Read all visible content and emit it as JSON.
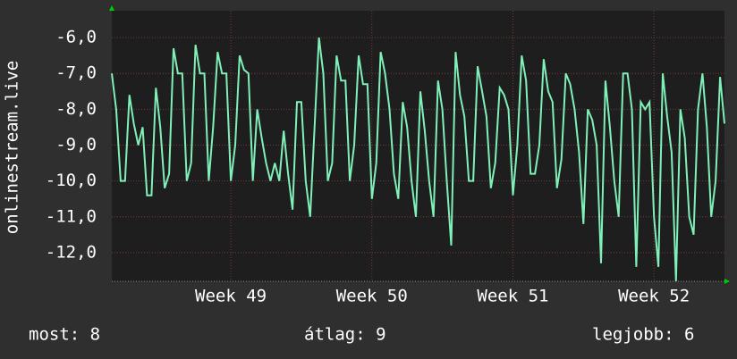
{
  "chart_data": {
    "type": "line",
    "ylabel": "onlinestream.live",
    "values": [
      -7.0,
      -8.0,
      -10.0,
      -10.0,
      -7.6,
      -8.4,
      -9.0,
      -8.5,
      -10.4,
      -10.4,
      -7.4,
      -8.5,
      -10.2,
      -9.8,
      -6.3,
      -7.0,
      -7.0,
      -10.0,
      -9.5,
      -6.2,
      -7.0,
      -7.0,
      -10.0,
      -8.5,
      -6.4,
      -7.0,
      -7.0,
      -10.0,
      -9.0,
      -6.5,
      -6.9,
      -7.0,
      -10.0,
      -8.0,
      -8.8,
      -9.5,
      -10.0,
      -9.5,
      -10.0,
      -8.6,
      -9.8,
      -10.8,
      -7.8,
      -7.8,
      -10.0,
      -11.0,
      -8.5,
      -6.0,
      -7.0,
      -10.0,
      -9.5,
      -6.5,
      -7.2,
      -7.2,
      -10.0,
      -9.0,
      -6.5,
      -7.3,
      -7.3,
      -10.5,
      -9.5,
      -6.4,
      -7.0,
      -8.0,
      -9.8,
      -10.5,
      -7.8,
      -8.5,
      -10.0,
      -11.0,
      -7.5,
      -8.6,
      -10.0,
      -11.0,
      -7.2,
      -8.0,
      -10.0,
      -11.8,
      -6.4,
      -7.6,
      -8.2,
      -10.0,
      -10.0,
      -6.8,
      -7.5,
      -8.2,
      -10.2,
      -9.5,
      -7.4,
      -7.6,
      -8.0,
      -10.4,
      -9.0,
      -6.5,
      -7.2,
      -9.8,
      -9.8,
      -9.0,
      -6.6,
      -7.5,
      -7.8,
      -10.2,
      -9.4,
      -7.0,
      -7.3,
      -8.0,
      -9.2,
      -11.2,
      -8.0,
      -8.3,
      -9.0,
      -12.3,
      -7.2,
      -8.5,
      -10.0,
      -11.0,
      -7.0,
      -7.0,
      -8.0,
      -12.4,
      -7.8,
      -8.0,
      -7.8,
      -11.0,
      -12.4,
      -7.0,
      -8.2,
      -9.2,
      -12.8,
      -8.0,
      -8.8,
      -11.0,
      -11.5,
      -8.0,
      -7.0,
      -8.5,
      -11.0,
      -10.0,
      -7.1,
      -8.4
    ],
    "color": "#7ff0b8",
    "xlim": [
      0,
      139
    ],
    "xticks": [
      {
        "value": 27,
        "label": "Week 49"
      },
      {
        "value": 59,
        "label": "Week 50"
      },
      {
        "value": 91,
        "label": "Week 51"
      },
      {
        "value": 123,
        "label": "Week 52"
      }
    ],
    "ylim": [
      -12.8,
      -5.25
    ],
    "yticks": [
      {
        "value": -6,
        "label": "-6,0"
      },
      {
        "value": -7,
        "label": "-7,0"
      },
      {
        "value": -8,
        "label": "-8,0"
      },
      {
        "value": -9,
        "label": "-9,0"
      },
      {
        "value": -10,
        "label": "-10,0"
      },
      {
        "value": -11,
        "label": "-11,0"
      },
      {
        "value": -12,
        "label": "-12,0"
      }
    ],
    "grid": true,
    "footer": [
      "most: 8",
      "átlag: 9",
      "legjobb: 6"
    ]
  }
}
